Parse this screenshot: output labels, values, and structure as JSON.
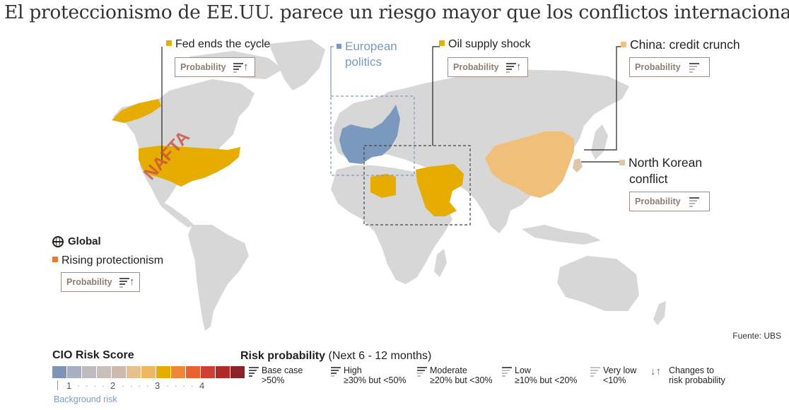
{
  "title": "El proteccionismo de EE.UU. parece un riesgo mayor que los conflictos internacionales",
  "source": "Fuente: UBS",
  "map_overlay_text": "NAFTA",
  "colors": {
    "land": "#d7d7d7",
    "border": "#ffffff",
    "fed": "#e6ac00",
    "oil": "#e6ac00",
    "europe": "#7b99bf",
    "china": "#f0c07a",
    "north_korea": "#e0c6a8",
    "protectionism": "#e87a2a"
  },
  "risks": {
    "fed": {
      "label": "Fed ends the cycle",
      "probability_label": "Probability",
      "level": "high",
      "change": "up",
      "region": "United States"
    },
    "europe": {
      "label": "European politics",
      "region": "Europe"
    },
    "oil": {
      "label": "Oil supply shock",
      "probability_label": "Probability",
      "level": "high",
      "change": "up",
      "region": "Middle East and North Africa"
    },
    "china": {
      "label": "China: credit crunch",
      "probability_label": "Probability",
      "level": "low",
      "change": "none",
      "region": "China"
    },
    "north_korea": {
      "label_line1": "North Korean",
      "label_line2": "conflict",
      "probability_label": "Probability",
      "level": "low",
      "change": "none",
      "region": "Korea"
    },
    "global": {
      "heading": "Global",
      "label": "Rising protectionism",
      "probability_label": "Probability",
      "level": "high",
      "change": "up"
    }
  },
  "legend": {
    "cio_title": "CIO Risk Score",
    "scale_colors": [
      "#7d94b5",
      "#a8b0c0",
      "#bdbbbd",
      "#c9c0bb",
      "#cdb9ad",
      "#e6c190",
      "#edb860",
      "#e6ac00",
      "#ee8838",
      "#e8622e",
      "#cf3e32",
      "#b02a2a",
      "#8c2228"
    ],
    "scale_ticks": [
      "1",
      "2",
      "3",
      "4"
    ],
    "background_label": "Background risk",
    "probability_title": "Risk probability",
    "probability_subtitle": "(Next 6 - 12 months)",
    "levels": [
      {
        "name": "Base case",
        "detail": ">50%",
        "filled": 4
      },
      {
        "name": "High",
        "detail": "≥30% but <50%",
        "filled": 3
      },
      {
        "name": "Moderate",
        "detail": "≥20% but <30%",
        "filled": 2
      },
      {
        "name": "Low",
        "detail": "≥10% but <20%",
        "filled": 1
      },
      {
        "name": "Very low",
        "detail": "<10%",
        "filled": 0
      }
    ],
    "changes_line1": "Changes to",
    "changes_line2": "risk probability"
  }
}
